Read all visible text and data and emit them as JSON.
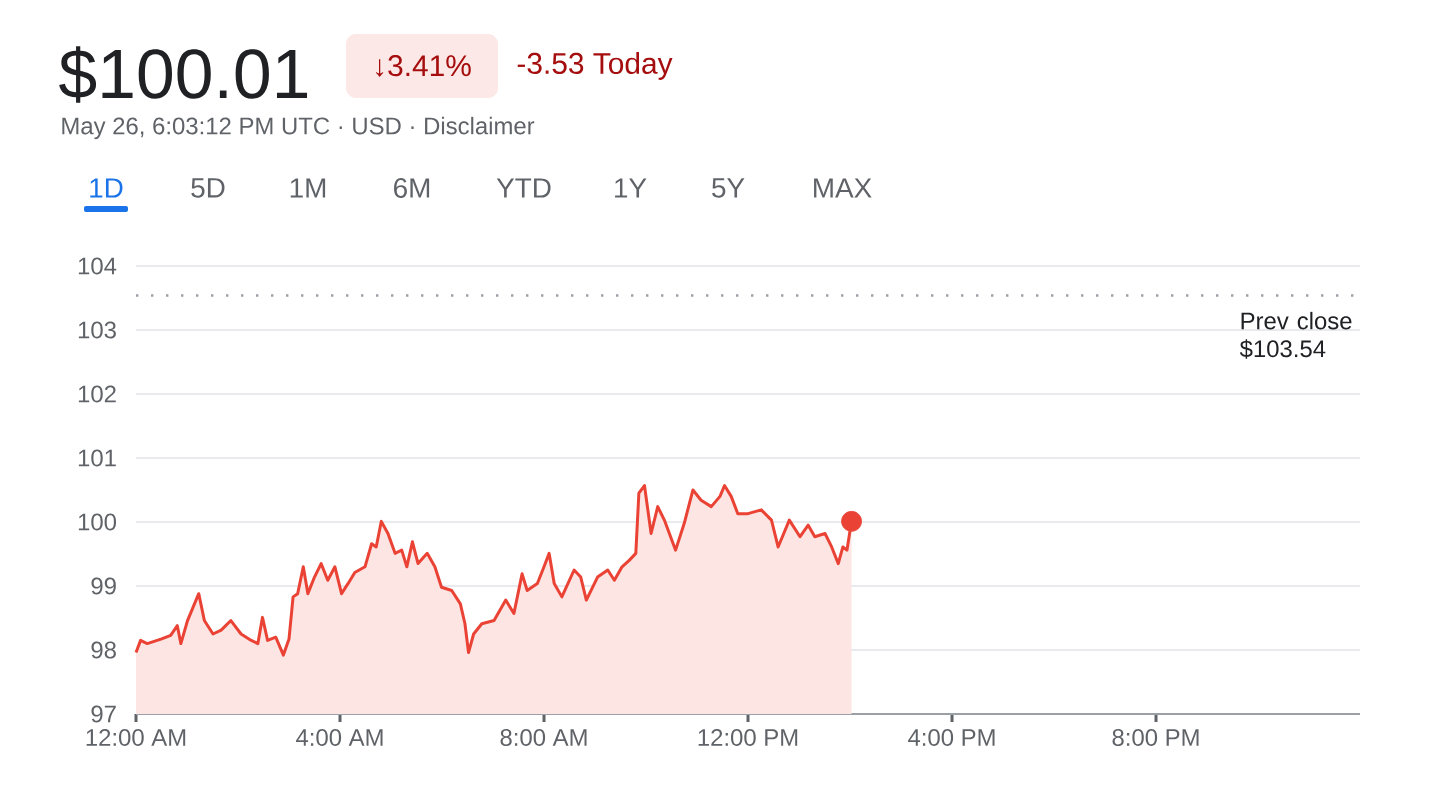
{
  "chart_data": {
    "type": "area",
    "title": "$100.01",
    "subtitle": "May 26, 6:03:12 PM UTC · USD · Disclaimer",
    "annotations": [
      "↓3.41%",
      "-3.53 Today",
      "1D",
      "5D",
      "1M",
      "6M",
      "YTD",
      "1Y",
      "5Y",
      "MAX"
    ],
    "xlim": [
      0,
      24
    ],
    "xticks": [
      {
        "value": 0,
        "label": "12:00 AM"
      },
      {
        "value": 4,
        "label": "4:00 AM"
      },
      {
        "value": 8,
        "label": "8:00 AM"
      },
      {
        "value": 12,
        "label": "12:00 PM"
      },
      {
        "value": 16,
        "label": "4:00 PM"
      },
      {
        "value": 20,
        "label": "8:00 PM"
      }
    ],
    "ylim": [
      97,
      104
    ],
    "yticks": [
      97,
      98,
      99,
      100,
      101,
      102,
      103,
      104
    ],
    "grid": "y",
    "series": [
      {
        "color": "#ea4335",
        "x": [
          0,
          0.09,
          0.22,
          0.49,
          0.68,
          0.81,
          0.88,
          1.01,
          1.11,
          1.23,
          1.34,
          1.51,
          1.67,
          1.86,
          2.06,
          2.26,
          2.39,
          2.48,
          2.58,
          2.74,
          2.89,
          3.0,
          3.08,
          3.17,
          3.28,
          3.37,
          3.5,
          3.63,
          3.76,
          3.9,
          4.03,
          4.16,
          4.29,
          4.49,
          4.62,
          4.71,
          4.81,
          4.94,
          5.08,
          5.21,
          5.31,
          5.42,
          5.53,
          5.71,
          5.86,
          5.99,
          6.19,
          6.36,
          6.45,
          6.52,
          6.62,
          6.78,
          7.02,
          7.25,
          7.41,
          7.57,
          7.67,
          7.87,
          8.0,
          8.1,
          8.2,
          8.35,
          8.59,
          8.72,
          8.83,
          9.05,
          9.25,
          9.38,
          9.53,
          9.67,
          9.8,
          9.86,
          9.97,
          10.1,
          10.23,
          10.36,
          10.58,
          10.75,
          10.92,
          11.08,
          11.28,
          11.45,
          11.54,
          11.67,
          11.8,
          12.0,
          12.26,
          12.46,
          12.59,
          12.81,
          13.02,
          13.18,
          13.31,
          13.51,
          13.64,
          13.77,
          13.86,
          13.94,
          14.03
        ],
        "values": [
          97.96,
          98.15,
          98.1,
          98.17,
          98.23,
          98.38,
          98.1,
          98.46,
          98.65,
          98.88,
          98.46,
          98.25,
          98.31,
          98.46,
          98.25,
          98.15,
          98.1,
          98.51,
          98.15,
          98.2,
          97.92,
          98.17,
          98.83,
          98.88,
          99.3,
          98.88,
          99.14,
          99.35,
          99.09,
          99.3,
          98.88,
          99.04,
          99.21,
          99.3,
          99.66,
          99.61,
          100.01,
          99.82,
          99.51,
          99.56,
          99.3,
          99.69,
          99.35,
          99.51,
          99.3,
          98.98,
          98.93,
          98.72,
          98.41,
          97.96,
          98.25,
          98.41,
          98.46,
          98.78,
          98.57,
          99.19,
          98.93,
          99.04,
          99.3,
          99.51,
          99.04,
          98.83,
          99.25,
          99.14,
          98.78,
          99.14,
          99.25,
          99.09,
          99.3,
          99.4,
          99.51,
          100.45,
          100.57,
          99.82,
          100.24,
          100.03,
          99.56,
          99.98,
          100.5,
          100.34,
          100.24,
          100.4,
          100.57,
          100.4,
          100.13,
          100.13,
          100.19,
          100.03,
          99.61,
          100.03,
          99.77,
          99.95,
          99.77,
          99.82,
          99.61,
          99.35,
          99.61,
          99.56,
          100.01
        ]
      },
      {
        "type": "scatter",
        "color": "#ea4335",
        "marker": "circle",
        "x": [
          14.03
        ],
        "values": [
          100.01
        ]
      }
    ],
    "ref_lines": [
      {
        "axis": "y",
        "value": 103.54,
        "label": "Prev close $103.54",
        "color": "#9aa0a6",
        "line_style": "dotted"
      }
    ]
  }
}
